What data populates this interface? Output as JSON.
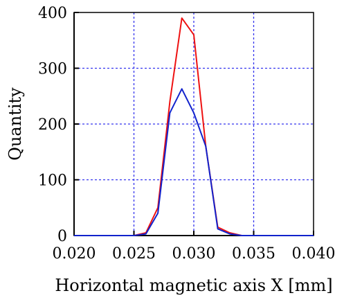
{
  "chart_data": {
    "type": "line",
    "title": "",
    "xlabel": "Horizontal magnetic axis X [mm]",
    "ylabel": "Quantity",
    "xlim": [
      0.02,
      0.04
    ],
    "ylim": [
      0,
      400
    ],
    "x_ticks": [
      "0.020",
      "0.025",
      "0.030",
      "0.035",
      "0.040"
    ],
    "y_ticks": [
      "0",
      "100",
      "200",
      "300",
      "400"
    ],
    "grid": true,
    "legend": "none",
    "series": [
      {
        "color": "#ee1111",
        "x": [
          0.02,
          0.025,
          0.026,
          0.027,
          0.028,
          0.029,
          0.03,
          0.031,
          0.032,
          0.033,
          0.034,
          0.035,
          0.04
        ],
        "y": [
          0,
          0,
          5,
          50,
          240,
          390,
          360,
          160,
          15,
          5,
          0,
          0,
          0
        ]
      },
      {
        "color": "#1122cc",
        "x": [
          0.02,
          0.025,
          0.026,
          0.027,
          0.028,
          0.029,
          0.03,
          0.031,
          0.032,
          0.033,
          0.034,
          0.035,
          0.04
        ],
        "y": [
          0,
          0,
          3,
          40,
          220,
          263,
          220,
          160,
          12,
          3,
          0,
          0,
          0
        ]
      }
    ]
  }
}
